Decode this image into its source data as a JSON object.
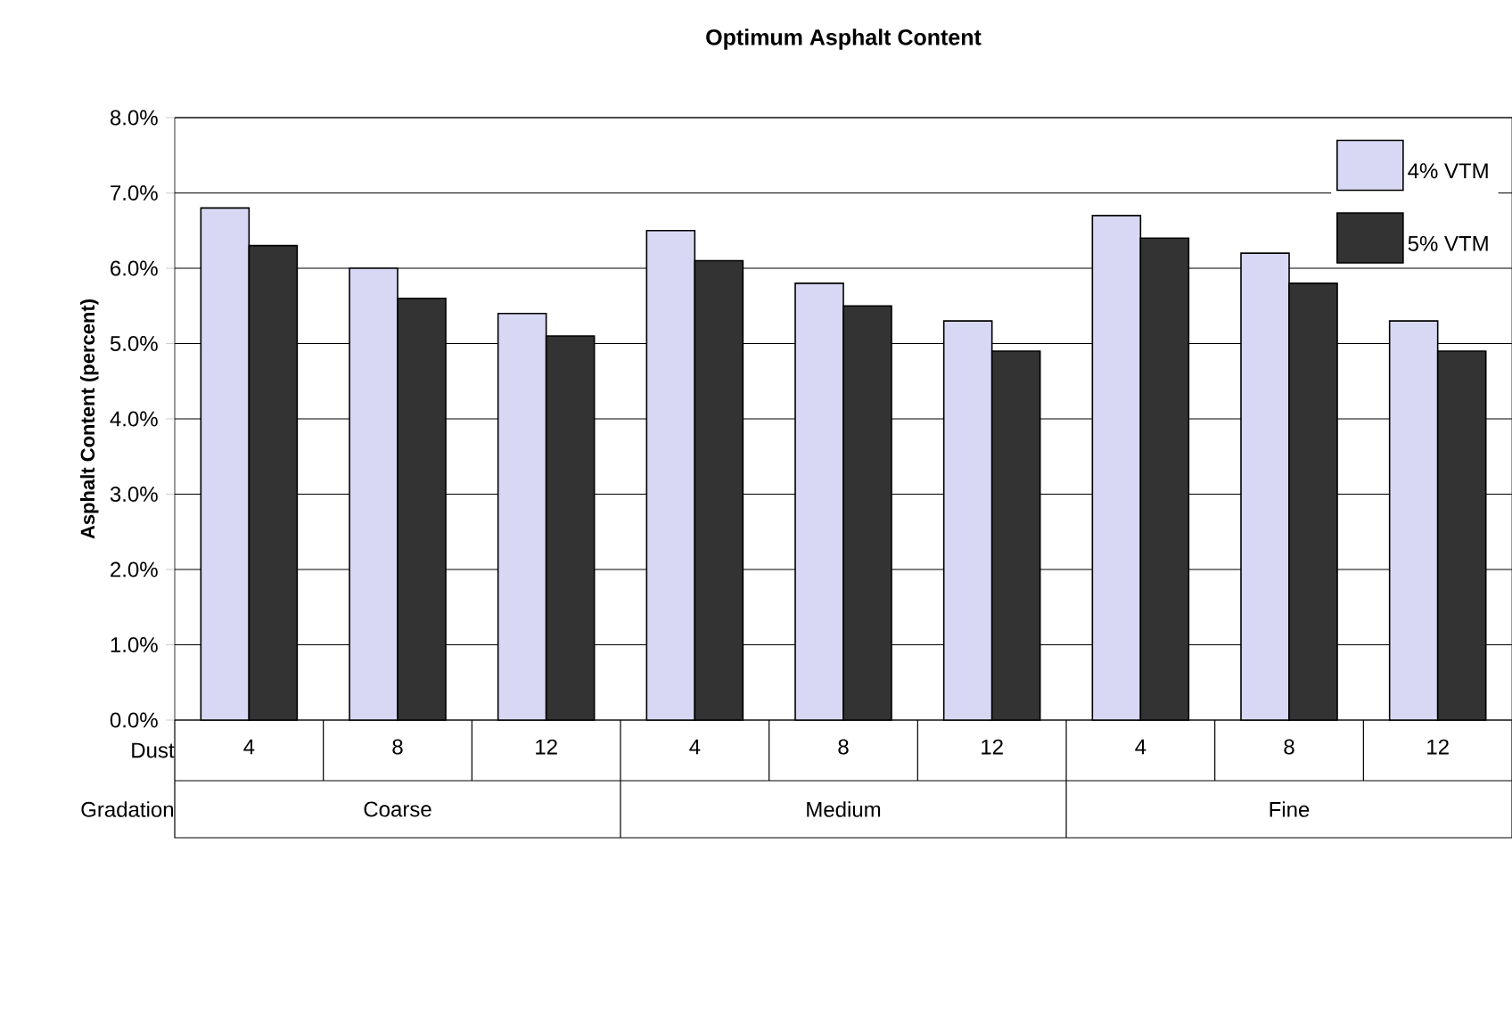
{
  "chart_data": {
    "type": "bar",
    "title": "Optimum Asphalt Content",
    "ylabel": "Asphalt Content (percent)",
    "categories": [
      "4",
      "8",
      "12",
      "4",
      "8",
      "12",
      "4",
      "8",
      "12"
    ],
    "series": [
      {
        "name": "4% VTM",
        "color": "#d8d8f4",
        "values": [
          6.8,
          6.0,
          5.4,
          6.5,
          5.8,
          5.3,
          6.7,
          6.2,
          5.3
        ]
      },
      {
        "name": "5% VTM",
        "color": "#333333",
        "values": [
          6.3,
          5.6,
          5.1,
          6.1,
          5.5,
          4.9,
          6.4,
          5.8,
          4.9
        ]
      }
    ],
    "ylim": [
      0,
      8
    ],
    "yticks": [
      {
        "value": 0,
        "label": "0.0%"
      },
      {
        "value": 1,
        "label": "1.0%"
      },
      {
        "value": 2,
        "label": "2.0%"
      },
      {
        "value": 3,
        "label": "3.0%"
      },
      {
        "value": 4,
        "label": "4.0%"
      },
      {
        "value": 5,
        "label": "5.0%"
      },
      {
        "value": 6,
        "label": "6.0%"
      },
      {
        "value": 7,
        "label": "7.0%"
      },
      {
        "value": 8,
        "label": "8.0%"
      }
    ],
    "grid": "y",
    "legend": "top right",
    "annotations": [
      "Dust",
      "Gradation",
      "Coarse",
      "Medium",
      "Fine"
    ]
  }
}
